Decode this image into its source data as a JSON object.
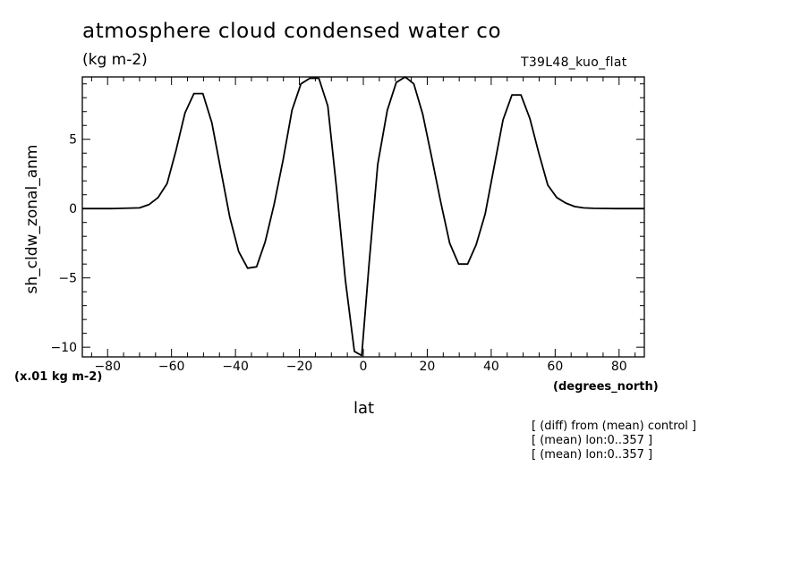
{
  "header": {
    "title": "atmosphere cloud condensed water co",
    "units": "(kg m-2)",
    "run_id": "T39L48_kuo_flat"
  },
  "axes": {
    "scale_note": "(x.01 kg m-2)",
    "x_units": "(degrees_north)"
  },
  "notes": [
    "[ (diff) from (mean) control ]",
    "[ (mean) lon:0..357 ]",
    "[ (mean) lon:0..357 ]"
  ],
  "chart_data": {
    "type": "line",
    "title": "atmosphere cloud condensed water co",
    "xlabel": "lat",
    "ylabel": "sh_cldw_zonal_anm",
    "xlim": [
      -87.9,
      87.9
    ],
    "ylim": [
      -10.7,
      9.5
    ],
    "x_ticks": [
      -80,
      -60,
      -40,
      -20,
      0,
      20,
      40,
      60,
      80
    ],
    "y_ticks": [
      -10,
      -5,
      0,
      5
    ],
    "grid": false,
    "series": [
      {
        "x": [
          -87.9,
          -79.0,
          -70.0,
          -67.0,
          -64.2,
          -61.4,
          -58.6,
          -55.8,
          -53.0,
          -50.2,
          -47.4,
          -44.6,
          -41.8,
          -39.0,
          -36.2,
          -33.4,
          -30.7,
          -27.9,
          -25.1,
          -22.3,
          -19.5,
          -16.7,
          -13.9,
          -11.1,
          -8.4,
          -5.6,
          -2.8,
          -0.5,
          1.8,
          4.5,
          7.5,
          10.3,
          13.1,
          15.8,
          18.6,
          21.4,
          24.2,
          27.0,
          29.8,
          32.6,
          35.3,
          38.1,
          40.9,
          43.7,
          46.5,
          49.3,
          52.1,
          54.9,
          57.7,
          60.5,
          63.3,
          66.1,
          68.9,
          72.0,
          79.0,
          87.9
        ],
        "y": [
          0.0,
          0.0,
          0.05,
          0.3,
          0.8,
          1.8,
          4.2,
          6.9,
          8.3,
          8.3,
          6.2,
          2.8,
          -0.6,
          -3.1,
          -4.3,
          -4.2,
          -2.4,
          0.3,
          3.5,
          7.1,
          9.0,
          9.4,
          9.4,
          7.4,
          1.5,
          -5.2,
          -10.3,
          -10.6,
          -4.0,
          3.2,
          7.1,
          9.1,
          9.5,
          9.0,
          6.8,
          3.7,
          0.5,
          -2.5,
          -4.0,
          -4.0,
          -2.6,
          -0.4,
          3.0,
          6.4,
          8.2,
          8.2,
          6.5,
          4.0,
          1.7,
          0.8,
          0.4,
          0.15,
          0.05,
          0.02,
          0.0,
          0.0
        ]
      }
    ]
  }
}
